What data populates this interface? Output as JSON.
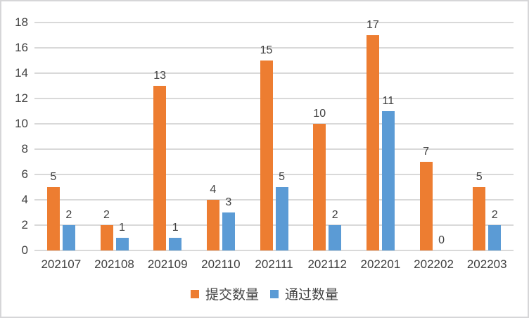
{
  "chart_data": {
    "type": "bar",
    "categories": [
      "202107",
      "202108",
      "202109",
      "202110",
      "202111",
      "202112",
      "202201",
      "202202",
      "202203"
    ],
    "series": [
      {
        "name": "提交数量",
        "color": "#ED7D31",
        "values": [
          5,
          2,
          13,
          4,
          15,
          10,
          17,
          7,
          5
        ]
      },
      {
        "name": "通过数量",
        "color": "#5B9BD5",
        "values": [
          2,
          1,
          1,
          3,
          5,
          2,
          11,
          0,
          2
        ]
      }
    ],
    "ylim": [
      0,
      18
    ],
    "yticks": [
      0,
      2,
      4,
      6,
      8,
      10,
      12,
      14,
      16,
      18
    ],
    "grid": true,
    "data_labels": true,
    "legend_position": "bottom",
    "colors": {
      "series_submit": "#ED7D31",
      "series_pass": "#5B9BD5",
      "gridline": "#D9D9D9",
      "text": "#404040",
      "border": "#D6D6D8",
      "background": "#FFFFFF"
    }
  }
}
